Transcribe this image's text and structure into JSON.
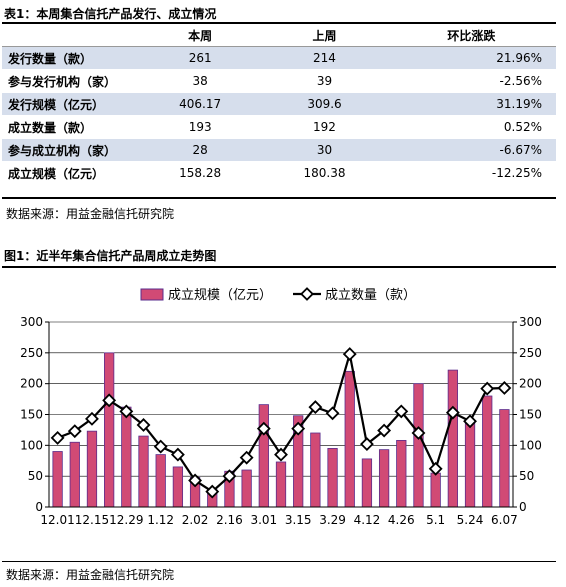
{
  "table_caption": "表1：本周集合信托产品发行、成立情况",
  "table": {
    "headers": [
      "",
      "本周",
      "上周",
      "环比涨跌"
    ],
    "rows": [
      {
        "label": "发行数量（款）",
        "this_week": "261",
        "last_week": "214",
        "change": "21.96%"
      },
      {
        "label": "参与发行机构（家）",
        "this_week": "38",
        "last_week": "39",
        "change": "-2.56%"
      },
      {
        "label": "发行规模（亿元）",
        "this_week": "406.17",
        "last_week": "309.6",
        "change": "31.19%"
      },
      {
        "label": "成立数量（款）",
        "this_week": "193",
        "last_week": "192",
        "change": "0.52%"
      },
      {
        "label": "参与成立机构（家）",
        "this_week": "28",
        "last_week": "30",
        "change": "-6.67%"
      },
      {
        "label": "成立规模（亿元）",
        "this_week": "158.28",
        "last_week": "180.38",
        "change": "-12.25%"
      }
    ]
  },
  "source_1": "数据来源：用益金融信托研究院",
  "figure_caption": "图1：近半年集合信托产品周成立走势图",
  "source_2": "数据来源：用益金融信托研究院",
  "colors": {
    "bar": "#d14a75",
    "bar_edge": "#5a2c8c",
    "line": "#000000",
    "marker_fill": "#ffffff",
    "row_alt": "#d6deec"
  },
  "chart_data": {
    "type": "bar",
    "legend": {
      "position": "top",
      "entries": [
        "成立规模（亿元）",
        "成立数量（款）"
      ]
    },
    "x_tick_labels": [
      "12.01",
      "12.15",
      "12.29",
      "1.12",
      "2.02",
      "2.16",
      "3.01",
      "3.15",
      "3.29",
      "4.12",
      "4.26",
      "5.1",
      "5.24",
      "6.07"
    ],
    "ylim_left": [
      0,
      300
    ],
    "ylim_right": [
      0,
      300
    ],
    "y_ticks": [
      0,
      50,
      100,
      150,
      200,
      250,
      300
    ],
    "series": [
      {
        "name": "成立规模（亿元）",
        "type": "bar",
        "axis": "left",
        "values": [
          90,
          105,
          123,
          250,
          162,
          115,
          85,
          65,
          48,
          28,
          58,
          60,
          166,
          73,
          148,
          120,
          95,
          220,
          78,
          93,
          108,
          200,
          55,
          222,
          140,
          180,
          158
        ]
      },
      {
        "name": "成立数量（款）",
        "type": "line",
        "axis": "right",
        "values": [
          112,
          123,
          143,
          173,
          155,
          133,
          98,
          85,
          43,
          25,
          50,
          80,
          127,
          85,
          127,
          162,
          152,
          248,
          102,
          124,
          155,
          120,
          62,
          153,
          139,
          192,
          193
        ]
      }
    ]
  }
}
